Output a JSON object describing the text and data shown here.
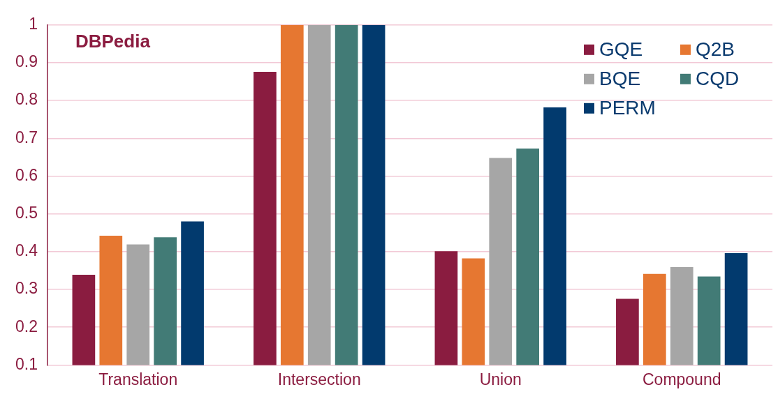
{
  "chart_data": {
    "type": "bar",
    "title": "DBPedia",
    "categories": [
      "Translation",
      "Intersection",
      "Union",
      "Compound"
    ],
    "series": [
      {
        "name": "GQE",
        "color": "#8a1c40",
        "values": [
          0.339,
          0.876,
          0.401,
          0.275
        ]
      },
      {
        "name": "Q2B",
        "color": "#e67731",
        "values": [
          0.442,
          1,
          0.382,
          0.341
        ]
      },
      {
        "name": "BQE",
        "color": "#a6a6a6",
        "values": [
          0.419,
          1,
          0.648,
          0.359
        ]
      },
      {
        "name": "CQD",
        "color": "#427b76",
        "values": [
          0.438,
          1,
          0.673,
          0.334
        ]
      },
      {
        "name": "PERM",
        "color": "#023a6e",
        "values": [
          0.48,
          1,
          0.782,
          0.396
        ]
      }
    ],
    "ylim": [
      0.1,
      1
    ],
    "yticks": [
      0.1,
      0.2,
      0.3,
      0.4,
      0.5,
      0.6,
      0.7,
      0.8,
      0.9,
      1
    ],
    "grid": "y",
    "legend": "top right"
  }
}
